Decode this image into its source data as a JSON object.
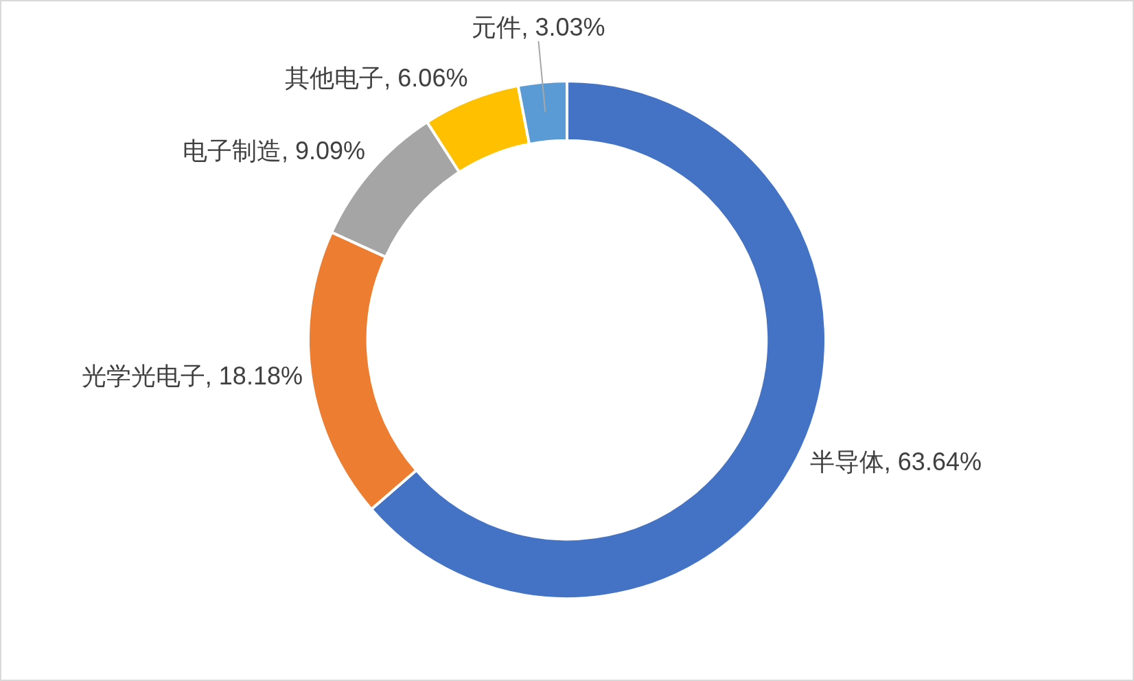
{
  "chart_data": {
    "type": "donut",
    "categories": [
      "半导体",
      "光学光电子",
      "电子制造",
      "其他电子",
      "元件"
    ],
    "values": [
      63.64,
      18.18,
      9.09,
      6.06,
      3.03
    ],
    "colors": [
      "#4472c4",
      "#ed7d31",
      "#a5a5a5",
      "#ffc000",
      "#5b9bd5"
    ],
    "value_labels": [
      "63.64%",
      "18.18%",
      "9.09%",
      "6.06%",
      "3.03%"
    ]
  }
}
